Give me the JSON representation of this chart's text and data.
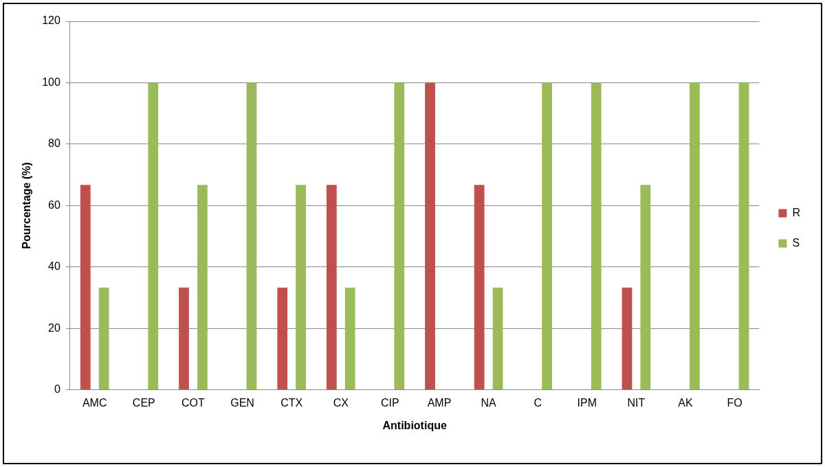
{
  "chart_data": {
    "type": "bar",
    "xlabel": "Antibiotique",
    "ylabel": "Pourcentage (%)",
    "categories": [
      "AMC",
      "CEP",
      "COT",
      "GEN",
      "CTX",
      "CX",
      "CIP",
      "AMP",
      "NA",
      "C",
      "IPM",
      "NIT",
      "AK",
      "FO"
    ],
    "series": [
      {
        "name": "R",
        "color": "#c0504d",
        "values": [
          66.7,
          0,
          33.3,
          0,
          33.3,
          66.7,
          0,
          100,
          66.7,
          0,
          0,
          33.3,
          0,
          0
        ]
      },
      {
        "name": "S",
        "color": "#9bbb59",
        "values": [
          33.3,
          100,
          66.7,
          100,
          66.7,
          33.3,
          100,
          0,
          33.3,
          100,
          100,
          66.7,
          100,
          100
        ]
      }
    ],
    "ylim": [
      0,
      120
    ],
    "yticks": [
      0,
      20,
      40,
      60,
      80,
      100,
      120
    ],
    "grid": "y",
    "legend": "right"
  }
}
